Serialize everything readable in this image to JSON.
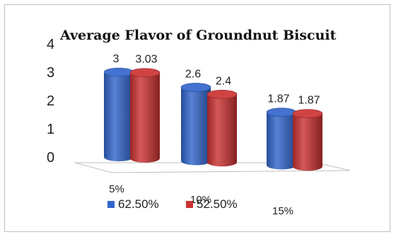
{
  "chart_data": {
    "type": "bar",
    "style": "3d-cylinder",
    "title": "Average Flavor of Groundnut Biscuit",
    "categories": [
      "5%",
      "10%",
      "15%"
    ],
    "series": [
      {
        "name": "62.50%",
        "values": [
          3,
          2.6,
          1.87
        ],
        "labels": [
          "3",
          "2.6",
          "1.87"
        ],
        "color": "#3366cc"
      },
      {
        "name": "52.50%",
        "values": [
          3.03,
          2.4,
          1.87
        ],
        "labels": [
          "3.03",
          "2.4",
          "1.87"
        ],
        "color": "#cc3333"
      }
    ],
    "ylim": [
      0,
      4
    ],
    "yticks": [
      "0",
      "1",
      "2",
      "3",
      "4"
    ],
    "grid": false,
    "legend": "bottom"
  }
}
